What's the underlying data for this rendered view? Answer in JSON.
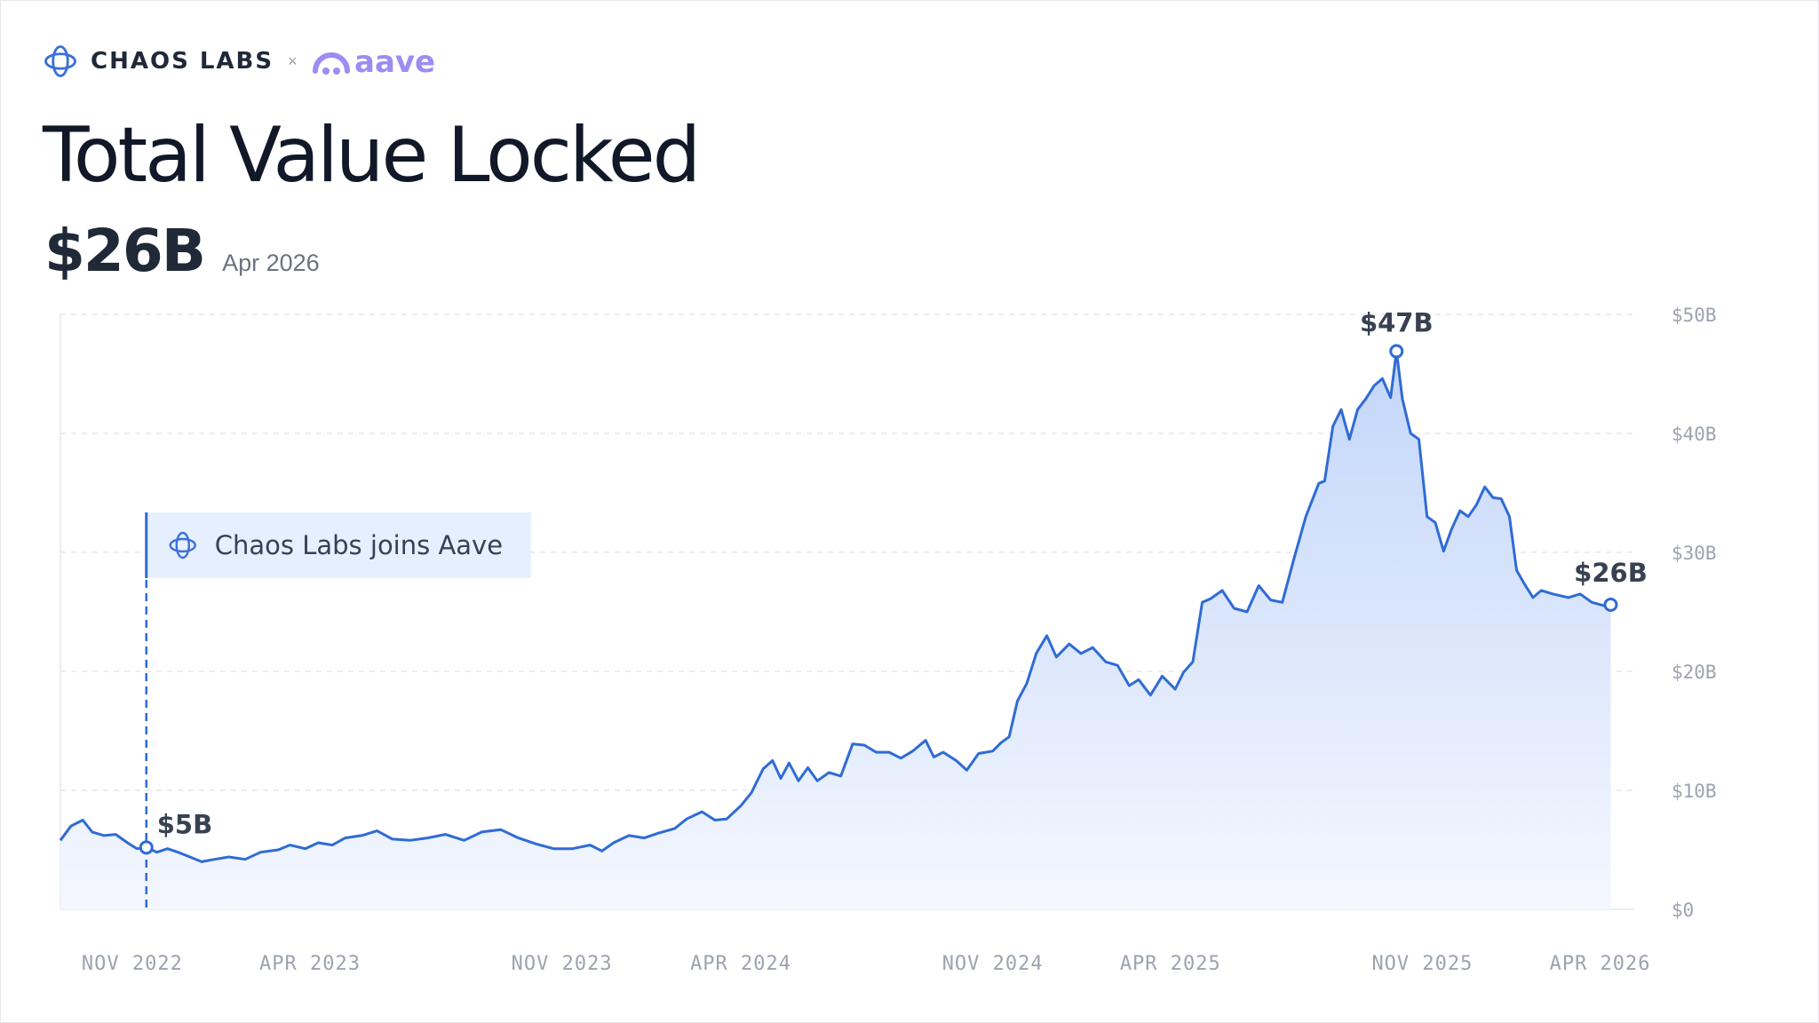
{
  "brand": {
    "name": "CHAOS LABS",
    "separator": "×",
    "partner": "aave"
  },
  "title": "Total Value Locked",
  "kpi": {
    "value": "$26B",
    "date": "Apr 2026"
  },
  "colors": {
    "line": "#2f6bd6",
    "brand_blue": "#3b6fd8",
    "partner_purple": "#9d8cf2",
    "annotation_bg": "#e6efff"
  },
  "chart_data": {
    "type": "area",
    "title": "Total Value Locked",
    "xlabel": "",
    "ylabel": "",
    "y_unit": "USD billions",
    "xlim": [
      "2022-09-01",
      "2026-04-30"
    ],
    "ylim": [
      0,
      50
    ],
    "grid": "horizontal dashed",
    "x_ticks": [
      {
        "date": "2022-11-01",
        "label": "NOV 2022"
      },
      {
        "date": "2023-04-01",
        "label": "APR 2023"
      },
      {
        "date": "2023-11-01",
        "label": "NOV 2023"
      },
      {
        "date": "2024-04-01",
        "label": "APR 2024"
      },
      {
        "date": "2024-11-01",
        "label": "NOV 2024"
      },
      {
        "date": "2025-04-01",
        "label": "APR 2025"
      },
      {
        "date": "2025-11-01",
        "label": "NOV 2025"
      },
      {
        "date": "2026-04-01",
        "label": "APR 2026"
      }
    ],
    "y_ticks": [
      {
        "value": 50,
        "label": "$50B"
      },
      {
        "value": 40,
        "label": "$40B"
      },
      {
        "value": 30,
        "label": "$30B"
      },
      {
        "value": 20,
        "label": "$20B"
      },
      {
        "value": 10,
        "label": "$10B"
      },
      {
        "value": 0,
        "label": "$0"
      }
    ],
    "series": [
      {
        "points": [
          [
            "2022-09-01",
            5.8
          ],
          [
            "2022-09-10",
            7.0
          ],
          [
            "2022-09-20",
            7.5
          ],
          [
            "2022-09-28",
            6.5
          ],
          [
            "2022-10-08",
            6.2
          ],
          [
            "2022-10-18",
            6.3
          ],
          [
            "2022-10-28",
            5.6
          ],
          [
            "2022-11-05",
            5.1
          ],
          [
            "2022-11-13",
            5.2
          ],
          [
            "2022-11-22",
            4.8
          ],
          [
            "2022-12-01",
            5.1
          ],
          [
            "2022-12-10",
            4.8
          ],
          [
            "2022-12-20",
            4.4
          ],
          [
            "2022-12-30",
            4.0
          ],
          [
            "2023-01-10",
            4.2
          ],
          [
            "2023-01-22",
            4.4
          ],
          [
            "2023-02-05",
            4.2
          ],
          [
            "2023-02-18",
            4.8
          ],
          [
            "2023-03-05",
            5.0
          ],
          [
            "2023-03-15",
            5.4
          ],
          [
            "2023-03-28",
            5.1
          ],
          [
            "2023-04-08",
            5.6
          ],
          [
            "2023-04-20",
            5.4
          ],
          [
            "2023-05-01",
            6.0
          ],
          [
            "2023-05-15",
            6.2
          ],
          [
            "2023-05-28",
            6.6
          ],
          [
            "2023-06-10",
            5.9
          ],
          [
            "2023-06-25",
            5.8
          ],
          [
            "2023-07-10",
            6.0
          ],
          [
            "2023-07-25",
            6.3
          ],
          [
            "2023-08-10",
            5.8
          ],
          [
            "2023-08-25",
            6.5
          ],
          [
            "2023-09-10",
            6.7
          ],
          [
            "2023-09-25",
            6.0
          ],
          [
            "2023-10-10",
            5.5
          ],
          [
            "2023-10-25",
            5.1
          ],
          [
            "2023-11-10",
            5.1
          ],
          [
            "2023-11-25",
            5.4
          ],
          [
            "2023-12-05",
            4.9
          ],
          [
            "2023-12-15",
            5.6
          ],
          [
            "2023-12-28",
            6.2
          ],
          [
            "2024-01-10",
            6.0
          ],
          [
            "2024-01-22",
            6.4
          ],
          [
            "2024-02-05",
            6.8
          ],
          [
            "2024-02-15",
            7.6
          ],
          [
            "2024-02-28",
            8.2
          ],
          [
            "2024-03-10",
            7.5
          ],
          [
            "2024-03-20",
            7.6
          ],
          [
            "2024-04-01",
            8.7
          ],
          [
            "2024-04-10",
            9.8
          ],
          [
            "2024-04-20",
            11.8
          ],
          [
            "2024-04-28",
            12.5
          ],
          [
            "2024-05-05",
            11.0
          ],
          [
            "2024-05-12",
            12.3
          ],
          [
            "2024-05-20",
            10.8
          ],
          [
            "2024-05-28",
            11.9
          ],
          [
            "2024-06-05",
            10.8
          ],
          [
            "2024-06-15",
            11.5
          ],
          [
            "2024-06-25",
            11.2
          ],
          [
            "2024-07-05",
            13.9
          ],
          [
            "2024-07-15",
            13.8
          ],
          [
            "2024-07-25",
            13.2
          ],
          [
            "2024-08-05",
            13.2
          ],
          [
            "2024-08-15",
            12.7
          ],
          [
            "2024-08-25",
            13.3
          ],
          [
            "2024-09-05",
            14.2
          ],
          [
            "2024-09-12",
            12.8
          ],
          [
            "2024-09-20",
            13.2
          ],
          [
            "2024-10-01",
            12.5
          ],
          [
            "2024-10-10",
            11.7
          ],
          [
            "2024-10-20",
            13.1
          ],
          [
            "2024-11-01",
            13.3
          ],
          [
            "2024-11-08",
            14.0
          ],
          [
            "2024-11-15",
            14.5
          ],
          [
            "2024-11-22",
            17.5
          ],
          [
            "2024-11-30",
            19.0
          ],
          [
            "2024-12-08",
            21.5
          ],
          [
            "2024-12-17",
            23.0
          ],
          [
            "2024-12-25",
            21.2
          ],
          [
            "2025-01-05",
            22.3
          ],
          [
            "2025-01-15",
            21.5
          ],
          [
            "2025-01-25",
            22.0
          ],
          [
            "2025-02-05",
            20.8
          ],
          [
            "2025-02-15",
            20.5
          ],
          [
            "2025-02-25",
            18.8
          ],
          [
            "2025-03-05",
            19.3
          ],
          [
            "2025-03-15",
            18.0
          ],
          [
            "2025-03-25",
            19.6
          ],
          [
            "2025-04-05",
            18.5
          ],
          [
            "2025-04-12",
            19.9
          ],
          [
            "2025-04-20",
            20.8
          ],
          [
            "2025-04-28",
            25.8
          ],
          [
            "2025-05-05",
            26.1
          ],
          [
            "2025-05-15",
            26.8
          ],
          [
            "2025-05-25",
            25.3
          ],
          [
            "2025-06-05",
            25.0
          ],
          [
            "2025-06-15",
            27.2
          ],
          [
            "2025-06-25",
            26.0
          ],
          [
            "2025-07-05",
            25.8
          ],
          [
            "2025-07-15",
            29.5
          ],
          [
            "2025-07-25",
            33.0
          ],
          [
            "2025-08-05",
            35.8
          ],
          [
            "2025-08-10",
            36.0
          ],
          [
            "2025-08-17",
            40.6
          ],
          [
            "2025-08-24",
            42.0
          ],
          [
            "2025-08-31",
            39.5
          ],
          [
            "2025-09-07",
            42.0
          ],
          [
            "2025-09-14",
            42.9
          ],
          [
            "2025-09-21",
            44.0
          ],
          [
            "2025-09-28",
            44.6
          ],
          [
            "2025-10-05",
            43.0
          ],
          [
            "2025-10-10",
            46.9
          ],
          [
            "2025-10-15",
            42.9
          ],
          [
            "2025-10-22",
            40.0
          ],
          [
            "2025-10-29",
            39.5
          ],
          [
            "2025-11-05",
            33.0
          ],
          [
            "2025-11-12",
            32.5
          ],
          [
            "2025-11-19",
            30.1
          ],
          [
            "2025-11-26",
            32.0
          ],
          [
            "2025-12-03",
            33.5
          ],
          [
            "2025-12-10",
            33.0
          ],
          [
            "2025-12-17",
            34.0
          ],
          [
            "2025-12-24",
            35.5
          ],
          [
            "2025-12-31",
            34.6
          ],
          [
            "2026-01-07",
            34.5
          ],
          [
            "2026-01-14",
            33.0
          ],
          [
            "2026-01-20",
            28.5
          ],
          [
            "2026-01-27",
            27.3
          ],
          [
            "2026-02-03",
            26.2
          ],
          [
            "2026-02-10",
            26.8
          ],
          [
            "2026-02-20",
            26.5
          ],
          [
            "2026-03-05",
            26.2
          ],
          [
            "2026-03-15",
            26.5
          ],
          [
            "2026-03-25",
            25.8
          ],
          [
            "2026-04-05",
            25.5
          ],
          [
            "2026-04-10",
            25.6
          ]
        ]
      }
    ],
    "annotations": [
      {
        "date": "2022-11-13",
        "value": 5.2,
        "label": "$5B"
      },
      {
        "date": "2025-10-10",
        "value": 46.9,
        "label": "$47B"
      },
      {
        "date": "2026-04-10",
        "value": 25.6,
        "label": "$26B"
      }
    ],
    "event": {
      "date": "2022-11-13",
      "label": "Chaos Labs joins Aave"
    }
  }
}
